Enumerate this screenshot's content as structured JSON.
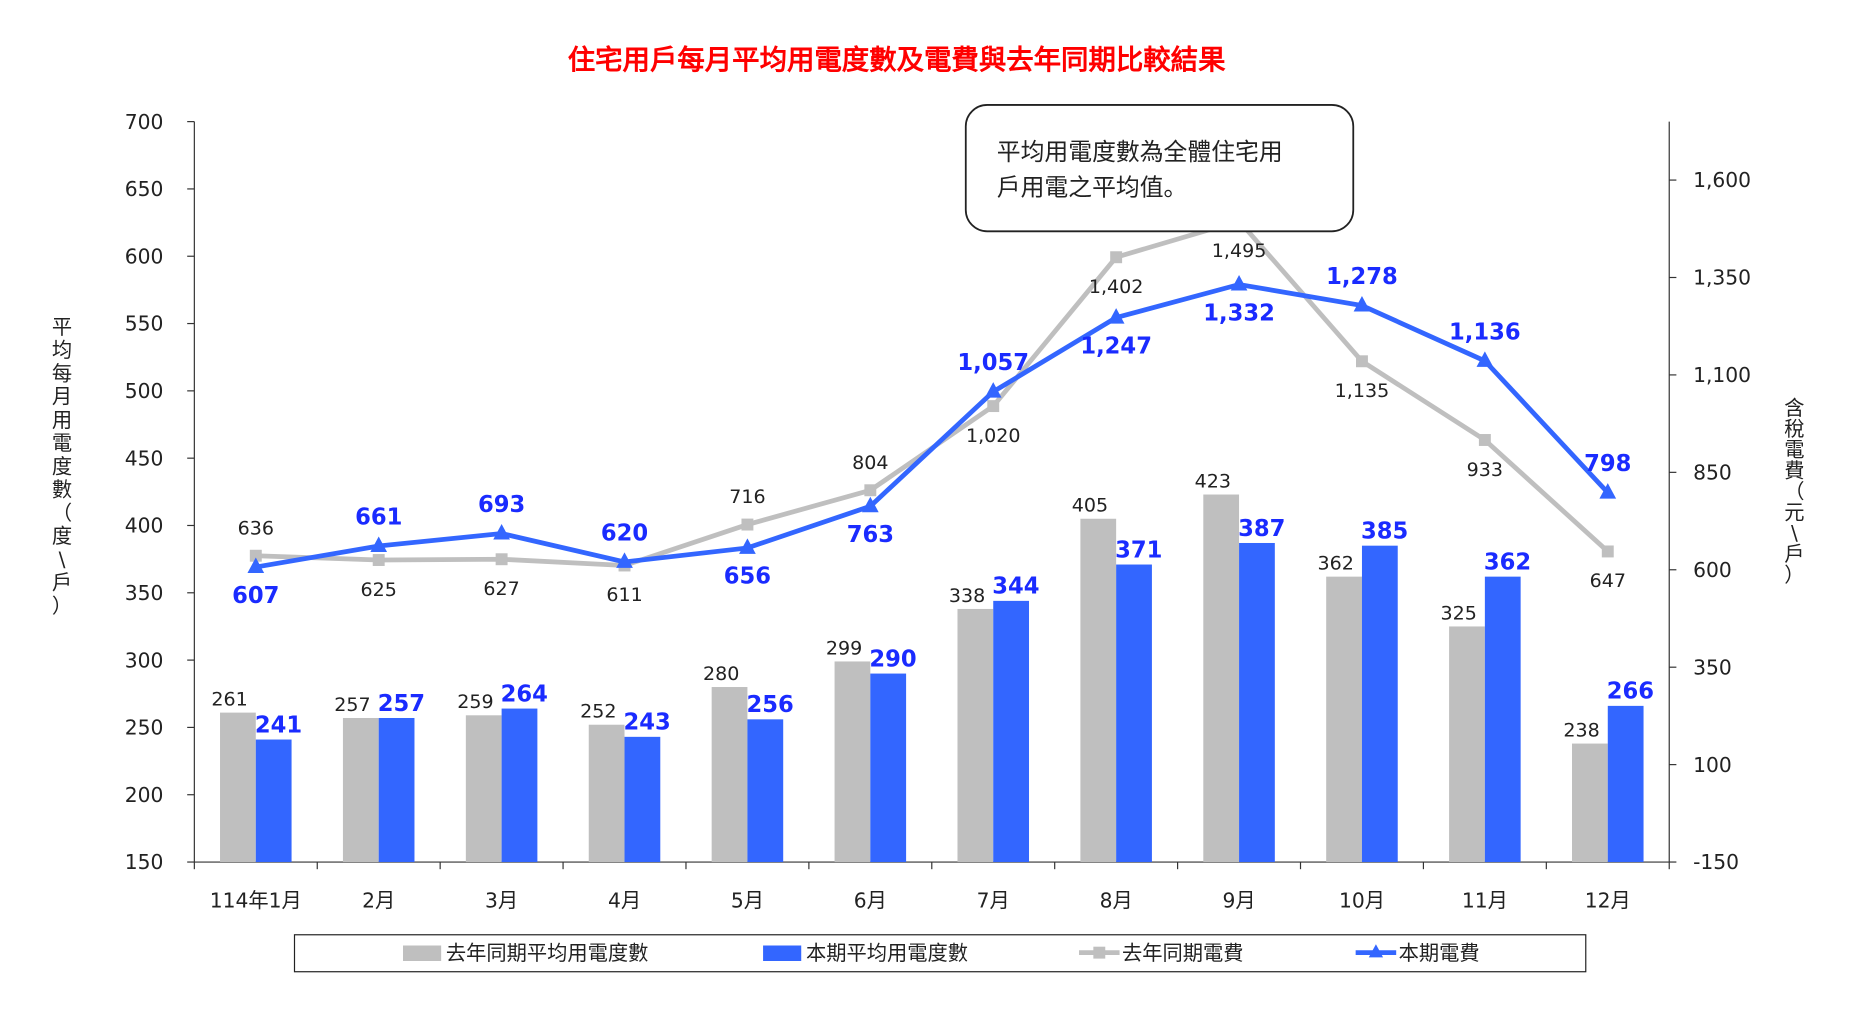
{
  "chart_data": {
    "type": "bar+line",
    "title": "住宅用戶每月平均用電度數及電費與去年同期比較結果",
    "categories": [
      "114年1月",
      "2月",
      "3月",
      "4月",
      "5月",
      "6月",
      "7月",
      "8月",
      "9月",
      "10月",
      "11月",
      "12月"
    ],
    "ylabel_left": "平均每月用電度數（度\\戶）",
    "ylabel_right": "含稅電費（元\\戶）",
    "ylim_left": [
      150,
      700
    ],
    "yticks_left": [
      150,
      200,
      250,
      300,
      350,
      400,
      450,
      500,
      550,
      600,
      650,
      700
    ],
    "ylim_right": [
      -150,
      1750
    ],
    "yticks_right": [
      -150,
      100,
      350,
      600,
      850,
      1100,
      1350,
      1600
    ],
    "grid": false,
    "legend_position": "bottom",
    "series": [
      {
        "name": "去年同期平均用電度數",
        "kind": "bar",
        "axis": "left",
        "color": "#bfbfbf",
        "values": [
          261,
          257,
          259,
          252,
          280,
          299,
          338,
          405,
          423,
          362,
          325,
          238
        ]
      },
      {
        "name": "本期平均用電度數",
        "kind": "bar",
        "axis": "left",
        "color": "#3366ff",
        "values": [
          241,
          257,
          264,
          243,
          256,
          290,
          344,
          371,
          387,
          385,
          362,
          266
        ]
      },
      {
        "name": "去年同期電費",
        "kind": "line",
        "marker": "square",
        "axis": "right",
        "color": "#bfbfbf",
        "values": [
          636,
          625,
          627,
          611,
          716,
          804,
          1020,
          1402,
          1495,
          1135,
          933,
          647
        ],
        "labels": [
          "636",
          "625",
          "627",
          "611",
          "716",
          "804",
          "1,020",
          "1,402",
          "1,495",
          "1,135",
          "933",
          "647"
        ]
      },
      {
        "name": "本期電費",
        "kind": "line",
        "marker": "triangle",
        "axis": "right",
        "color": "#3366ff",
        "values": [
          607,
          661,
          693,
          620,
          656,
          763,
          1057,
          1247,
          1332,
          1278,
          1136,
          798
        ],
        "labels": [
          "607",
          "661",
          "693",
          "620",
          "656",
          "763",
          "1,057",
          "1,247",
          "1,332",
          "1,278",
          "1,136",
          "798"
        ]
      }
    ],
    "annotation": [
      "平均用電度數為全體住宅用",
      "戶用電之平均值。"
    ],
    "title_color": "#ff0000"
  }
}
